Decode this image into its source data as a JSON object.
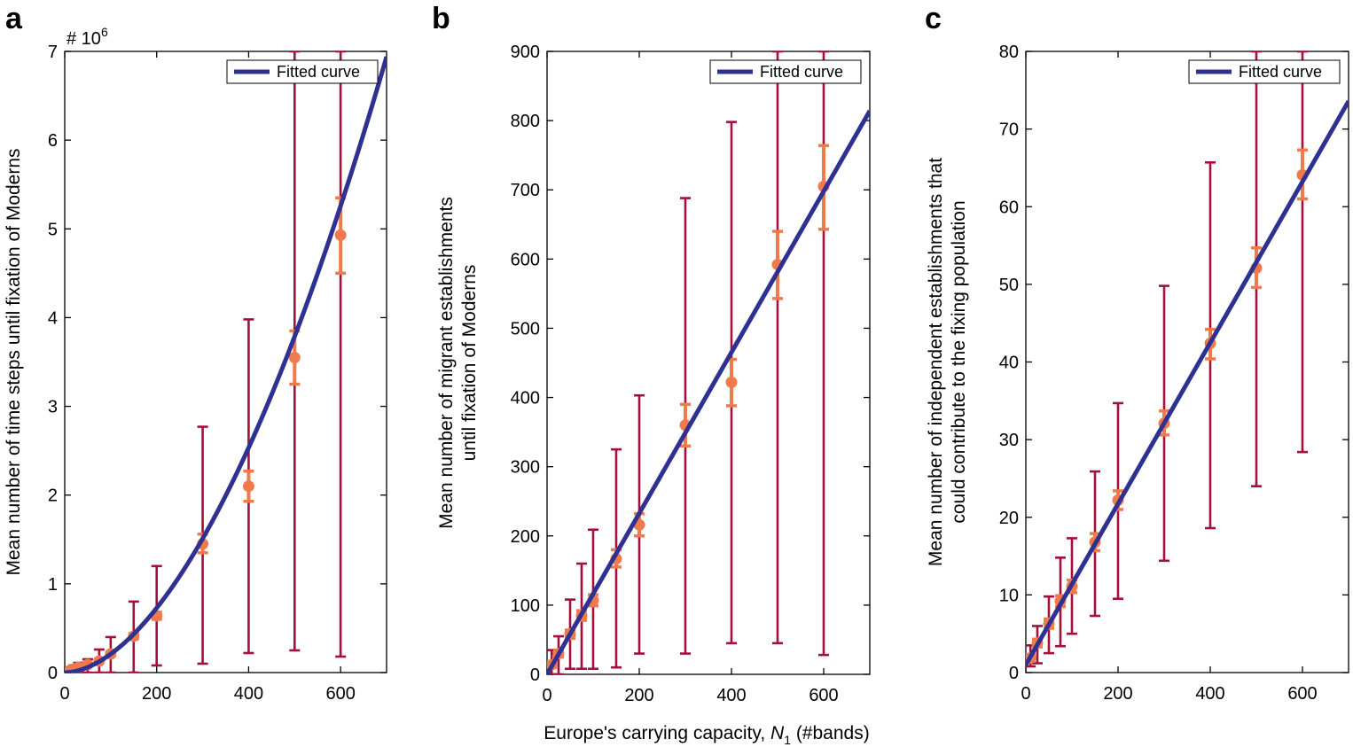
{
  "figure": {
    "shared_xlabel_prefix": "Europe's carrying capacity, ",
    "shared_xlabel_var": "N",
    "shared_xlabel_sub": "1",
    "shared_xlabel_suffix": " (#bands)",
    "colors": {
      "fit": "#2E3192",
      "outer_error": "#A50F3B",
      "inner_error": "#F07A4B",
      "axis": "#000000"
    }
  },
  "chart_data": [
    {
      "panel": "a",
      "type": "scatter",
      "title": "",
      "xlabel": "",
      "ylabel": "Mean number of time steps until fixation of Moderns",
      "ylabel_lines": [
        "Mean number of time steps until fixation of Moderns"
      ],
      "exponent_label_base": "# 10",
      "exponent_label_power": "6",
      "xlim": [
        0,
        700
      ],
      "ylim": [
        0,
        7
      ],
      "xticks": [
        0,
        200,
        400,
        600
      ],
      "yticks": [
        0,
        1,
        2,
        3,
        4,
        5,
        6,
        7
      ],
      "legend": {
        "label": "Fitted curve",
        "position": "top-right"
      },
      "fit": {
        "name": "Fitted curve",
        "form": "power",
        "a": 5.25e-05,
        "b": 1.8
      },
      "points": [
        {
          "x": 10,
          "y": 0.02,
          "outer": [
            0.0,
            0.05
          ],
          "inner": [
            0.01,
            0.03
          ]
        },
        {
          "x": 20,
          "y": 0.04,
          "outer": [
            0.0,
            0.08
          ],
          "inner": [
            0.03,
            0.05
          ]
        },
        {
          "x": 30,
          "y": 0.06,
          "outer": [
            0.0,
            0.11
          ],
          "inner": [
            0.05,
            0.07
          ]
        },
        {
          "x": 50,
          "y": 0.09,
          "outer": [
            0.0,
            0.15
          ],
          "inner": [
            0.08,
            0.1
          ]
        },
        {
          "x": 75,
          "y": 0.13,
          "outer": [
            0.0,
            0.26
          ],
          "inner": [
            0.12,
            0.15
          ]
        },
        {
          "x": 100,
          "y": 0.21,
          "outer": [
            0.0,
            0.4
          ],
          "inner": [
            0.19,
            0.23
          ]
        },
        {
          "x": 150,
          "y": 0.41,
          "outer": [
            0.0,
            0.8
          ],
          "inner": [
            0.38,
            0.44
          ]
        },
        {
          "x": 200,
          "y": 0.64,
          "outer": [
            0.08,
            1.2
          ],
          "inner": [
            0.6,
            0.68
          ]
        },
        {
          "x": 300,
          "y": 1.45,
          "outer": [
            0.1,
            2.77
          ],
          "inner": [
            1.35,
            1.56
          ]
        },
        {
          "x": 400,
          "y": 2.1,
          "outer": [
            0.22,
            3.98
          ],
          "inner": [
            1.93,
            2.27
          ]
        },
        {
          "x": 500,
          "y": 3.55,
          "outer": [
            0.25,
            7.0
          ],
          "inner": [
            3.25,
            3.85
          ]
        },
        {
          "x": 600,
          "y": 4.93,
          "outer": [
            0.18,
            7.0
          ],
          "inner": [
            4.5,
            5.35
          ]
        }
      ]
    },
    {
      "panel": "b",
      "type": "scatter",
      "title": "",
      "xlabel": "",
      "ylabel": "Mean number of migrant establishments until fixation of Moderns",
      "ylabel_lines": [
        "Mean number of migrant establishments",
        "until fixation of Moderns"
      ],
      "xlim": [
        0,
        700
      ],
      "ylim": [
        0,
        900
      ],
      "xticks": [
        0,
        200,
        400,
        600
      ],
      "yticks": [
        0,
        100,
        200,
        300,
        400,
        500,
        600,
        700,
        800,
        900
      ],
      "legend": {
        "label": "Fitted curve",
        "position": "top-right"
      },
      "fit": {
        "name": "Fitted curve",
        "form": "linear",
        "slope": 1.163,
        "intercept": 0
      },
      "points": [
        {
          "x": 10,
          "y": 14,
          "outer": [
            0,
            35
          ],
          "inner": [
            10,
            18
          ]
        },
        {
          "x": 25,
          "y": 30,
          "outer": [
            0,
            55
          ],
          "inner": [
            25,
            35
          ]
        },
        {
          "x": 50,
          "y": 58,
          "outer": [
            8,
            108
          ],
          "inner": [
            52,
            64
          ]
        },
        {
          "x": 75,
          "y": 85,
          "outer": [
            8,
            160
          ],
          "inner": [
            78,
            92
          ]
        },
        {
          "x": 100,
          "y": 107,
          "outer": [
            8,
            209
          ],
          "inner": [
            99,
            115
          ]
        },
        {
          "x": 150,
          "y": 167,
          "outer": [
            10,
            325
          ],
          "inner": [
            155,
            180
          ]
        },
        {
          "x": 200,
          "y": 216,
          "outer": [
            30,
            403
          ],
          "inner": [
            200,
            232
          ]
        },
        {
          "x": 300,
          "y": 360,
          "outer": [
            30,
            688
          ],
          "inner": [
            330,
            390
          ]
        },
        {
          "x": 400,
          "y": 422,
          "outer": [
            45,
            798
          ],
          "inner": [
            388,
            455
          ]
        },
        {
          "x": 500,
          "y": 592,
          "outer": [
            45,
            900
          ],
          "inner": [
            543,
            640
          ]
        },
        {
          "x": 600,
          "y": 705,
          "outer": [
            28,
            900
          ],
          "inner": [
            643,
            764
          ]
        }
      ]
    },
    {
      "panel": "c",
      "type": "scatter",
      "title": "",
      "xlabel": "",
      "ylabel": "Mean number of independent establishments that could contribute to the fixing population",
      "ylabel_lines": [
        "Mean number of independent establishments that",
        "could contribute to the fixing population"
      ],
      "xlim": [
        0,
        700
      ],
      "ylim": [
        0,
        80
      ],
      "xticks": [
        0,
        200,
        400,
        600
      ],
      "yticks": [
        0,
        10,
        20,
        30,
        40,
        50,
        60,
        70,
        80
      ],
      "legend": {
        "label": "Fitted curve",
        "position": "top-right"
      },
      "fit": {
        "name": "Fitted curve",
        "form": "linear",
        "slope": 0.1037,
        "intercept": 1.0
      },
      "points": [
        {
          "x": 10,
          "y": 1.9,
          "outer": [
            0.8,
            3.5
          ],
          "inner": [
            1.5,
            2.3
          ]
        },
        {
          "x": 25,
          "y": 3.8,
          "outer": [
            1.2,
            6.0
          ],
          "inner": [
            3.3,
            4.3
          ]
        },
        {
          "x": 50,
          "y": 6.3,
          "outer": [
            2.5,
            9.8
          ],
          "inner": [
            5.7,
            6.9
          ]
        },
        {
          "x": 75,
          "y": 9.2,
          "outer": [
            3.4,
            14.8
          ],
          "inner": [
            8.5,
            9.9
          ]
        },
        {
          "x": 100,
          "y": 11.1,
          "outer": [
            5.0,
            17.3
          ],
          "inner": [
            10.3,
            11.9
          ]
        },
        {
          "x": 150,
          "y": 16.8,
          "outer": [
            7.3,
            25.9
          ],
          "inner": [
            15.7,
            17.9
          ]
        },
        {
          "x": 200,
          "y": 22.2,
          "outer": [
            9.5,
            34.7
          ],
          "inner": [
            21.0,
            23.4
          ]
        },
        {
          "x": 300,
          "y": 32.1,
          "outer": [
            14.4,
            49.8
          ],
          "inner": [
            30.6,
            33.7
          ]
        },
        {
          "x": 400,
          "y": 42.4,
          "outer": [
            18.6,
            65.7
          ],
          "inner": [
            40.4,
            44.2
          ]
        },
        {
          "x": 500,
          "y": 52.1,
          "outer": [
            24.0,
            80.0
          ],
          "inner": [
            49.6,
            54.7
          ]
        },
        {
          "x": 600,
          "y": 64.1,
          "outer": [
            28.4,
            80.0
          ],
          "inner": [
            61.0,
            67.3
          ]
        }
      ]
    }
  ]
}
